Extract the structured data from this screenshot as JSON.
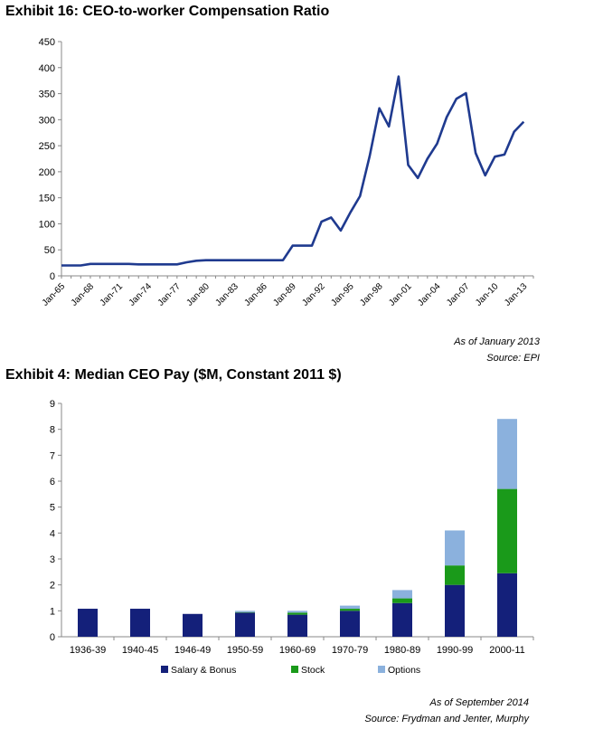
{
  "exhibit16": {
    "title": "Exhibit 16: CEO-to-worker Compensation Ratio",
    "as_of": "As of January 2013",
    "source": "Source: EPI"
  },
  "exhibit4": {
    "title": "Exhibit 4: Median CEO Pay ($M, Constant 2011 $)",
    "as_of": "As of September 2014",
    "source": "Source: Frydman and Jenter, Murphy"
  },
  "colors": {
    "line": "#1f3a8f",
    "salary": "#14207a",
    "stock": "#1a9a1a",
    "options": "#8bb1dd",
    "axis": "#888888"
  },
  "chart_data": [
    {
      "type": "line",
      "title": "Exhibit 16: CEO-to-worker Compensation Ratio",
      "xlabel": "",
      "ylabel": "",
      "ylim": [
        0,
        450
      ],
      "yticks": [
        0,
        50,
        100,
        150,
        200,
        250,
        300,
        350,
        400,
        450
      ],
      "xlim": [
        1965,
        2014
      ],
      "xticks": [
        "Jan-65",
        "Jan-68",
        "Jan-71",
        "Jan-74",
        "Jan-77",
        "Jan-80",
        "Jan-83",
        "Jan-86",
        "Jan-89",
        "Jan-92",
        "Jan-95",
        "Jan-98",
        "Jan-01",
        "Jan-04",
        "Jan-07",
        "Jan-10",
        "Jan-13"
      ],
      "grid": false,
      "series": [
        {
          "x": [
            1965,
            1966,
            1967,
            1968,
            1969,
            1970,
            1971,
            1972,
            1973,
            1974,
            1975,
            1976,
            1977,
            1978,
            1979,
            1980,
            1981,
            1982,
            1983,
            1984,
            1985,
            1986,
            1987,
            1988,
            1989,
            1990,
            1991,
            1992,
            1993,
            1994,
            1995,
            1996,
            1997,
            1998,
            1999,
            2000,
            2001,
            2002,
            2003,
            2004,
            2005,
            2006,
            2007,
            2008,
            2009,
            2010,
            2011,
            2012,
            2013
          ],
          "y": [
            20,
            20,
            20,
            23,
            23,
            23,
            23,
            23,
            22,
            22,
            22,
            22,
            22,
            26,
            29,
            30,
            30,
            30,
            30,
            30,
            30,
            30,
            30,
            30,
            58,
            58,
            58,
            104,
            112,
            87,
            122,
            153,
            230,
            322,
            287,
            383,
            213,
            188,
            225,
            254,
            305,
            340,
            351,
            236,
            193,
            229,
            233,
            277,
            296
          ]
        }
      ]
    },
    {
      "type": "bar",
      "stacked": true,
      "title": "Exhibit 4: Median CEO Pay ($M, Constant 2011 $)",
      "xlabel": "",
      "ylabel": "",
      "ylim": [
        0,
        9
      ],
      "yticks": [
        0,
        1,
        2,
        3,
        4,
        5,
        6,
        7,
        8,
        9
      ],
      "grid": false,
      "legend": "bottom",
      "categories": [
        "1936-39",
        "1940-45",
        "1946-49",
        "1950-59",
        "1960-69",
        "1970-79",
        "1980-89",
        "1990-99",
        "2000-11"
      ],
      "series": [
        {
          "name": "Salary & Bonus",
          "values": [
            1.08,
            1.08,
            0.88,
            0.93,
            0.85,
            1.0,
            1.3,
            2.0,
            2.45
          ]
        },
        {
          "name": "Stock",
          "values": [
            0,
            0,
            0,
            0.02,
            0.08,
            0.08,
            0.18,
            0.75,
            3.25
          ]
        },
        {
          "name": "Options",
          "values": [
            0,
            0,
            0,
            0.05,
            0.07,
            0.12,
            0.32,
            1.35,
            2.7
          ]
        }
      ]
    }
  ]
}
